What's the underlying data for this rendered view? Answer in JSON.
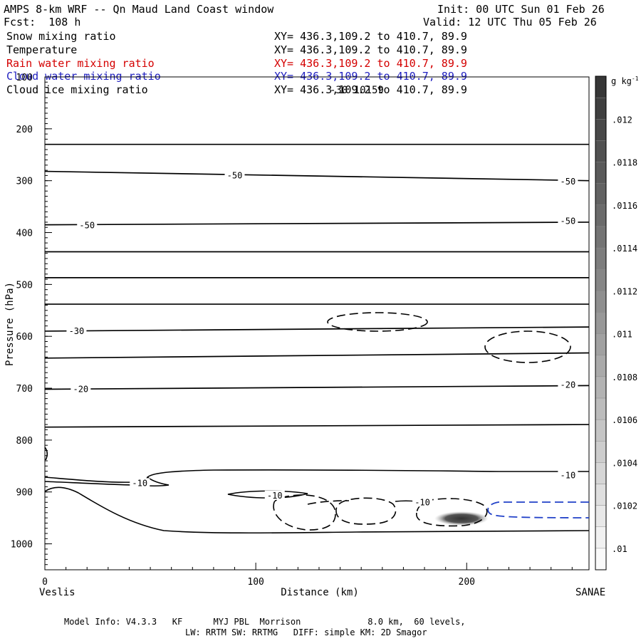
{
  "header": {
    "title": "AMPS 8-km WRF -- Qn Maud Land Coast window",
    "fcst": "Fcst:  108 h",
    "init": "Init: 00 UTC Sun 01 Feb 26",
    "valid": "Valid: 12 UTC Thu 05 Feb 26"
  },
  "fields": [
    {
      "label": "Snow mixing ratio",
      "xy": "XY= 436.3,109.2 to 410.7, 89.9",
      "color": "#000000"
    },
    {
      "label": "Temperature",
      "xy": "XY= 436.3,109.2 to 410.7, 89.9",
      "color": "#000000"
    },
    {
      "label": "Rain water mixing ratio",
      "xy": "XY= 436.3,109.2 to 410.7, 89.9",
      "color": "#d40000"
    },
    {
      "label": "Cloud water mixing ratio",
      "xy": "XY= 436.3,109.2 to 410.7, 89.9",
      "color": "#2020c0"
    },
    {
      "label": "Cloud ice mixing ratio",
      "xy": "XY= 436.3,109.2 to 410.7, 89.9",
      "color": "#000000"
    }
  ],
  "overprint_label": "-30 10159",
  "colorbar": {
    "unit": "g kg",
    "unit_exp": "-1",
    "ticks": [
      ".012",
      ".0118",
      ".0116",
      ".0114",
      ".0112",
      ".011",
      ".0108",
      ".0106",
      ".0104",
      ".0102",
      ".01"
    ],
    "min": 0.0099,
    "max": 0.0122
  },
  "footer": {
    "line1": "Model Info: V4.3.3   KF      MYJ PBL  Morrison             8.0 km,  60 levels,",
    "line2": "LW: RRTM SW: RRTMG   DIFF: simple KM: 2D Smagor"
  },
  "chart_data": {
    "type": "contour",
    "xlabel": "Distance (km)",
    "ylabel": "Pressure (hPa)",
    "xlim": [
      0,
      258
    ],
    "ylim": [
      1050,
      100
    ],
    "x_ticks": [
      0,
      100,
      200
    ],
    "y_ticks": [
      100,
      200,
      300,
      400,
      500,
      600,
      700,
      800,
      900,
      1000
    ],
    "left_endpoint": "Veslis",
    "right_endpoint": "SANAE",
    "temperature_isotherms": [
      {
        "p": [
          230,
          230
        ]
      },
      {
        "p": [
          282,
          300
        ]
      },
      {
        "p": [
          385,
          380
        ]
      },
      {
        "p": [
          437,
          437
        ]
      },
      {
        "p": [
          487,
          487
        ]
      },
      {
        "p": [
          538,
          538
        ]
      },
      {
        "p": [
          590,
          582
        ]
      },
      {
        "p": [
          642,
          632
        ]
      },
      {
        "p": [
          702,
          695
        ]
      },
      {
        "p": [
          775,
          770
        ]
      }
    ],
    "contour_labels": [
      {
        "text": "-50",
        "x": 90,
        "p": 290
      },
      {
        "text": "-50",
        "x": 248,
        "p": 302
      },
      {
        "text": "-50",
        "x": 20,
        "p": 386
      },
      {
        "text": "-50",
        "x": 248,
        "p": 378
      },
      {
        "text": "-30",
        "x": 15,
        "p": 590
      },
      {
        "text": "-20",
        "x": 17,
        "p": 702
      },
      {
        "text": "-20",
        "x": 248,
        "p": 694
      },
      {
        "text": "-10",
        "x": 248,
        "p": 868
      },
      {
        "text": "-10",
        "x": 45,
        "p": 883
      },
      {
        "text": "-10",
        "x": 109,
        "p": 907
      },
      {
        "text": "-10",
        "x": 179,
        "p": 920
      }
    ]
  }
}
